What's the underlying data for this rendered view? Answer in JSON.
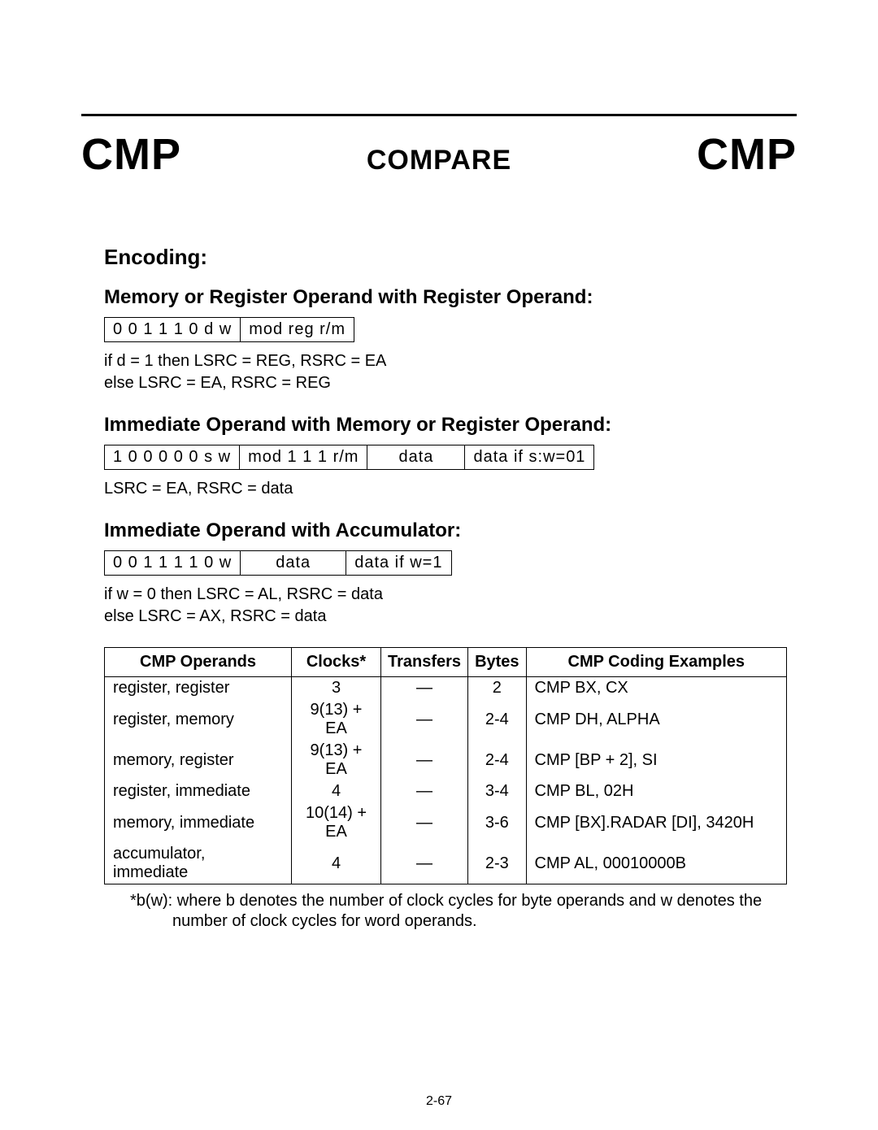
{
  "header": {
    "mnemonic_left": "CMP",
    "title": "COMPARE",
    "mnemonic_right": "CMP"
  },
  "encoding": {
    "heading": "Encoding:",
    "forms": [
      {
        "subheading": "Memory or Register Operand with Register Operand:",
        "cells": [
          "0 0 1 1 1 0 d w",
          "mod reg r/m"
        ],
        "note_html": "if d = 1 then LSRC = REG, RSRC = EA\nelse LSRC = EA, RSRC = REG"
      },
      {
        "subheading": "Immediate Operand with Memory or Register Operand:",
        "cells": [
          "1 0 0 0 0 0 s w",
          "mod 1 1 1 r/m",
          "data",
          "data if s:w=01"
        ],
        "note_html": "LSRC = EA, RSRC = data"
      },
      {
        "subheading": "Immediate Operand with Accumulator:",
        "cells": [
          "0 0 1 1 1 1 0 w",
          "data",
          "data if w=1"
        ],
        "note_html": "if w = 0 then LSRC = AL, RSRC = data\nelse LSRC = AX, RSRC = data"
      }
    ]
  },
  "table": {
    "columns": [
      "CMP Operands",
      "Clocks*",
      "Transfers",
      "Bytes",
      "CMP Coding Examples"
    ],
    "col_align": [
      "center",
      "center",
      "center",
      "center",
      "center"
    ],
    "body_align": [
      "left",
      "center",
      "center",
      "center",
      "left"
    ],
    "rows": [
      [
        "register, register",
        "3",
        "—",
        "2",
        "CMP BX, CX"
      ],
      [
        "register, memory",
        "9(13) + EA",
        "—",
        "2-4",
        "CMP DH, ALPHA"
      ],
      [
        "memory, register",
        "9(13) + EA",
        "—",
        "2-4",
        "CMP [BP + 2], SI"
      ],
      [
        "register, immediate",
        "4",
        "—",
        "3-4",
        "CMP BL, 02H"
      ],
      [
        "memory, immediate",
        "10(14) + EA",
        "—",
        "3-6",
        "CMP   [BX].RADAR   [DI], 3420H"
      ],
      [
        "accumulator, immediate",
        "4",
        "—",
        "2-3",
        "CMP AL, 00010000B"
      ]
    ]
  },
  "footnote": "*b(w):  where b denotes the number of clock cycles for byte operands and w denotes the number of clock cycles for word operands.",
  "page_number": "2-67"
}
